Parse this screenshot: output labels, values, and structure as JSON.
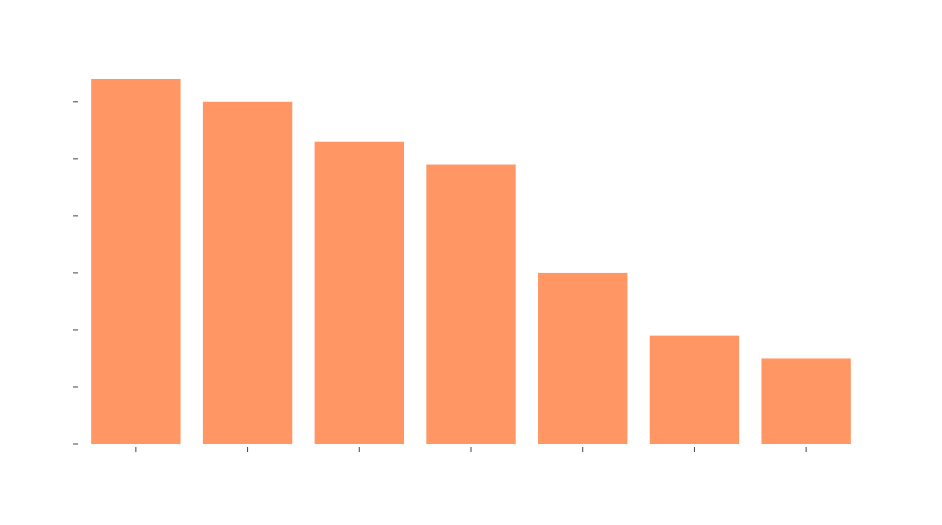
{
  "chart_data": {
    "type": "bar",
    "title": "",
    "xlabel": "",
    "ylabel": "",
    "categories": [
      "",
      "",
      "",
      "",
      "",
      "",
      ""
    ],
    "values": [
      6.4,
      6.0,
      5.3,
      4.9,
      3.0,
      1.9,
      1.5
    ],
    "ylim": [
      0,
      6.4
    ],
    "yticks": [
      0,
      1,
      2,
      3,
      4,
      5,
      6
    ],
    "grid": false,
    "legend": "none",
    "bar_color": "#FF9664",
    "tick_color": "#444444"
  }
}
